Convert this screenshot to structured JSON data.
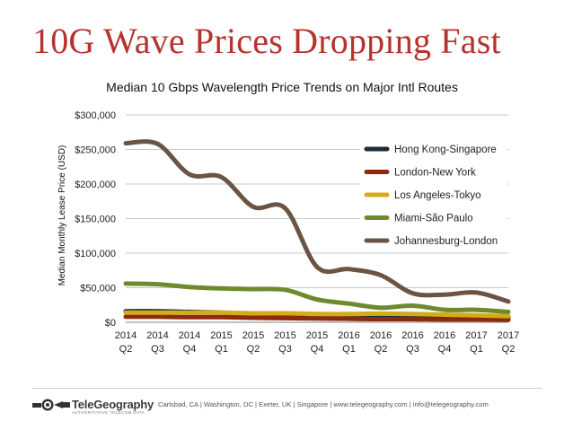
{
  "slide": {
    "title": "10G Wave Prices Dropping Fast",
    "footer": "Carlsbad, CA | Washington, DC | Exeter, UK | Singapore | www.telegeography.com | info@telegeography.com",
    "logo_text": "TeleGeography",
    "logo_tagline": "AUTHORITATIVE TELECOM DATA"
  },
  "chart_data": {
    "type": "line",
    "title": "Median 10 Gbps Wavelength Price Trends on Major Intl Routes",
    "xlabel": "",
    "ylabel": "Median Monthly Lease Price (USD)",
    "ylim": [
      0,
      300000
    ],
    "yticks": [
      "$0",
      "$50,000",
      "$100,000",
      "$150,000",
      "$200,000",
      "$250,000",
      "$300,000"
    ],
    "grid": true,
    "legend_position": "right",
    "categories": [
      [
        "2014",
        "Q2"
      ],
      [
        "2014",
        "Q3"
      ],
      [
        "2014",
        "Q4"
      ],
      [
        "2015",
        "Q1"
      ],
      [
        "2015",
        "Q2"
      ],
      [
        "2015",
        "Q3"
      ],
      [
        "2015",
        "Q4"
      ],
      [
        "2016",
        "Q1"
      ],
      [
        "2016",
        "Q2"
      ],
      [
        "2016",
        "Q3"
      ],
      [
        "2016",
        "Q4"
      ],
      [
        "2017",
        "Q1"
      ],
      [
        "2017",
        "Q2"
      ]
    ],
    "series": [
      {
        "name": "Hong Kong-Singapore",
        "color": "#1c2b3a",
        "values": [
          16000,
          16000,
          15000,
          14000,
          12000,
          11000,
          10000,
          9000,
          9000,
          8500,
          8000,
          7500,
          7000
        ]
      },
      {
        "name": "London-New York",
        "color": "#8b2a0c",
        "values": [
          8000,
          8000,
          7500,
          7500,
          6500,
          6000,
          5500,
          5000,
          4500,
          4500,
          4000,
          4000,
          3500
        ]
      },
      {
        "name": "Los Angeles-Tokyo",
        "color": "#d4ac1a",
        "values": [
          14000,
          14000,
          14000,
          14000,
          13000,
          13000,
          12000,
          12000,
          12500,
          12000,
          11000,
          10000,
          9000
        ]
      },
      {
        "name": "Miami-São Paulo",
        "color": "#6e8a2c",
        "values": [
          56000,
          55000,
          51000,
          49000,
          48000,
          47000,
          33000,
          27000,
          21000,
          24000,
          18000,
          18000,
          15000
        ]
      },
      {
        "name": "Johannesburg-London",
        "color": "#6b5443",
        "values": [
          259000,
          258000,
          214000,
          210000,
          167000,
          165000,
          80000,
          77000,
          68000,
          42000,
          40000,
          43000,
          30000
        ]
      }
    ]
  }
}
